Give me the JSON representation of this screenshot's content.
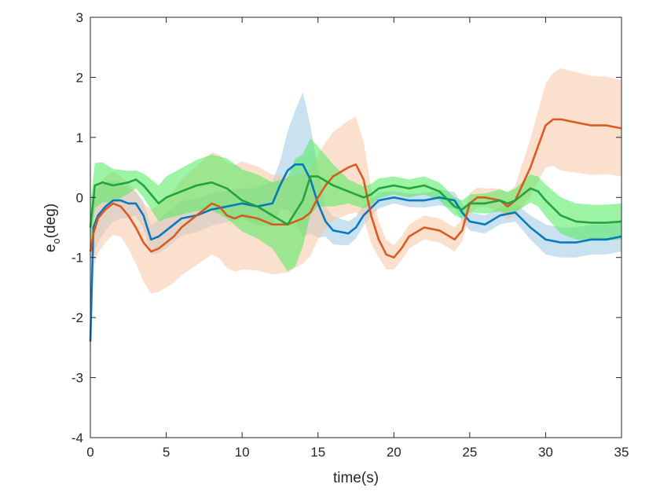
{
  "chart_data": {
    "type": "line",
    "xlabel": "time(s)",
    "ylabel": {
      "main": "e",
      "subscript": "o",
      "unit": "(deg)"
    },
    "xlim": [
      0,
      35
    ],
    "ylim": [
      -4,
      3
    ],
    "xticks": [
      0,
      5,
      10,
      15,
      20,
      25,
      30,
      35
    ],
    "yticks": [
      -4,
      -3,
      -2,
      -1,
      0,
      1,
      2,
      3
    ],
    "grid": false,
    "legend": "none",
    "series": [
      {
        "color": "#0072BD",
        "band_color": "#9ECAE1",
        "mean": [
          [
            0,
            -2.4
          ],
          [
            0.2,
            -0.5
          ],
          [
            0.5,
            -0.3
          ],
          [
            1,
            -0.15
          ],
          [
            1.5,
            -0.05
          ],
          [
            2,
            -0.05
          ],
          [
            2.5,
            -0.1
          ],
          [
            3,
            -0.1
          ],
          [
            3.5,
            -0.3
          ],
          [
            4,
            -0.7
          ],
          [
            4.5,
            -0.65
          ],
          [
            5,
            -0.55
          ],
          [
            5.5,
            -0.45
          ],
          [
            6,
            -0.35
          ],
          [
            7,
            -0.3
          ],
          [
            8,
            -0.2
          ],
          [
            9,
            -0.15
          ],
          [
            10,
            -0.1
          ],
          [
            11,
            -0.15
          ],
          [
            12,
            -0.1
          ],
          [
            12.5,
            0.2
          ],
          [
            13,
            0.45
          ],
          [
            13.5,
            0.55
          ],
          [
            14,
            0.55
          ],
          [
            14.5,
            0.3
          ],
          [
            15,
            -0.1
          ],
          [
            15.5,
            -0.4
          ],
          [
            16,
            -0.55
          ],
          [
            17,
            -0.6
          ],
          [
            17.5,
            -0.5
          ],
          [
            18,
            -0.3
          ],
          [
            19,
            -0.05
          ],
          [
            20,
            0
          ],
          [
            21,
            -0.05
          ],
          [
            22,
            -0.05
          ],
          [
            23,
            0
          ],
          [
            24,
            -0.05
          ],
          [
            24.5,
            -0.25
          ],
          [
            25,
            -0.4
          ],
          [
            26,
            -0.45
          ],
          [
            27,
            -0.3
          ],
          [
            28,
            -0.25
          ],
          [
            29,
            -0.5
          ],
          [
            30,
            -0.7
          ],
          [
            31,
            -0.75
          ],
          [
            32,
            -0.75
          ],
          [
            33,
            -0.7
          ],
          [
            34,
            -0.7
          ],
          [
            35,
            -0.65
          ]
        ],
        "spread": [
          [
            0,
            0.5
          ],
          [
            3,
            0.2
          ],
          [
            5,
            0.3
          ],
          [
            10,
            0.25
          ],
          [
            12.5,
            0.4
          ],
          [
            13.5,
            0.9
          ],
          [
            14,
            1.2
          ],
          [
            14.5,
            0.9
          ],
          [
            15.5,
            0.25
          ],
          [
            20,
            0.1
          ],
          [
            25,
            0.15
          ],
          [
            28,
            0.15
          ],
          [
            30,
            0.25
          ],
          [
            35,
            0.25
          ]
        ]
      },
      {
        "color": "#D95319",
        "band_color": "#F7C6A5",
        "mean": [
          [
            0,
            -0.9
          ],
          [
            0.2,
            -0.6
          ],
          [
            0.5,
            -0.35
          ],
          [
            1,
            -0.2
          ],
          [
            1.5,
            -0.1
          ],
          [
            2,
            -0.15
          ],
          [
            2.5,
            -0.3
          ],
          [
            3,
            -0.5
          ],
          [
            3.5,
            -0.75
          ],
          [
            4,
            -0.9
          ],
          [
            4.5,
            -0.85
          ],
          [
            5,
            -0.75
          ],
          [
            5.5,
            -0.65
          ],
          [
            6,
            -0.5
          ],
          [
            7,
            -0.3
          ],
          [
            7.5,
            -0.2
          ],
          [
            8,
            -0.1
          ],
          [
            8.5,
            -0.15
          ],
          [
            9,
            -0.3
          ],
          [
            9.5,
            -0.35
          ],
          [
            10,
            -0.3
          ],
          [
            11,
            -0.35
          ],
          [
            12,
            -0.45
          ],
          [
            13,
            -0.45
          ],
          [
            14,
            -0.35
          ],
          [
            14.5,
            -0.25
          ],
          [
            15,
            0
          ],
          [
            15.5,
            0.2
          ],
          [
            16,
            0.35
          ],
          [
            17,
            0.5
          ],
          [
            17.5,
            0.55
          ],
          [
            18,
            0.3
          ],
          [
            18.5,
            -0.3
          ],
          [
            19,
            -0.7
          ],
          [
            19.5,
            -0.95
          ],
          [
            20,
            -1
          ],
          [
            20.5,
            -0.85
          ],
          [
            21,
            -0.65
          ],
          [
            22,
            -0.5
          ],
          [
            23,
            -0.55
          ],
          [
            24,
            -0.7
          ],
          [
            24.5,
            -0.55
          ],
          [
            25,
            -0.1
          ],
          [
            25.5,
            0
          ],
          [
            26,
            0
          ],
          [
            27,
            -0.05
          ],
          [
            27.5,
            -0.15
          ],
          [
            28,
            -0.05
          ],
          [
            29,
            0.5
          ],
          [
            30,
            1.2
          ],
          [
            30.5,
            1.3
          ],
          [
            31,
            1.3
          ],
          [
            32,
            1.25
          ],
          [
            33,
            1.2
          ],
          [
            34,
            1.2
          ],
          [
            35,
            1.15
          ]
        ],
        "spread": [
          [
            0,
            0.6
          ],
          [
            2,
            0.5
          ],
          [
            4,
            0.7
          ],
          [
            6,
            0.8
          ],
          [
            10,
            0.9
          ],
          [
            13,
            0.8
          ],
          [
            15,
            0.7
          ],
          [
            17.5,
            0.8
          ],
          [
            19,
            0.3
          ],
          [
            20,
            0.2
          ],
          [
            24,
            0.2
          ],
          [
            26,
            0.15
          ],
          [
            28,
            0.25
          ],
          [
            30,
            0.7
          ],
          [
            31,
            0.85
          ],
          [
            35,
            0.8
          ]
        ]
      },
      {
        "color": "#1E9E3C",
        "band_color": "#4CEB5A",
        "mean": [
          [
            0,
            -0.5
          ],
          [
            0.3,
            0.2
          ],
          [
            0.8,
            0.25
          ],
          [
            1.5,
            0.2
          ],
          [
            2.5,
            0.25
          ],
          [
            3,
            0.3
          ],
          [
            3.5,
            0.2
          ],
          [
            4,
            0.05
          ],
          [
            4.5,
            -0.1
          ],
          [
            5,
            0
          ],
          [
            6,
            0.1
          ],
          [
            7,
            0.2
          ],
          [
            8,
            0.25
          ],
          [
            9,
            0.15
          ],
          [
            10,
            -0.05
          ],
          [
            11,
            -0.15
          ],
          [
            12,
            -0.3
          ],
          [
            13,
            -0.45
          ],
          [
            14,
            -0.05
          ],
          [
            14.5,
            0.35
          ],
          [
            15,
            0.35
          ],
          [
            16,
            0.2
          ],
          [
            17,
            0.1
          ],
          [
            18,
            0
          ],
          [
            18.5,
            0.05
          ],
          [
            19,
            0.15
          ],
          [
            20,
            0.2
          ],
          [
            21,
            0.15
          ],
          [
            22,
            0.2
          ],
          [
            23,
            0.1
          ],
          [
            24,
            -0.15
          ],
          [
            24.5,
            -0.2
          ],
          [
            25,
            -0.1
          ],
          [
            26,
            -0.1
          ],
          [
            27,
            -0.05
          ],
          [
            27.5,
            -0.1
          ],
          [
            28,
            -0.05
          ],
          [
            29,
            0.15
          ],
          [
            29.5,
            0.1
          ],
          [
            30,
            -0.05
          ],
          [
            31,
            -0.3
          ],
          [
            32,
            -0.4
          ],
          [
            33,
            -0.42
          ],
          [
            34,
            -0.42
          ],
          [
            35,
            -0.4
          ]
        ],
        "spread": [
          [
            0,
            0.4
          ],
          [
            3,
            0.15
          ],
          [
            5,
            0.35
          ],
          [
            9,
            0.5
          ],
          [
            12,
            0.55
          ],
          [
            13.5,
            0.9
          ],
          [
            15,
            0.5
          ],
          [
            17,
            0.2
          ],
          [
            20,
            0.15
          ],
          [
            25,
            0.15
          ],
          [
            28,
            0.2
          ],
          [
            31,
            0.3
          ],
          [
            35,
            0.3
          ]
        ]
      }
    ]
  }
}
